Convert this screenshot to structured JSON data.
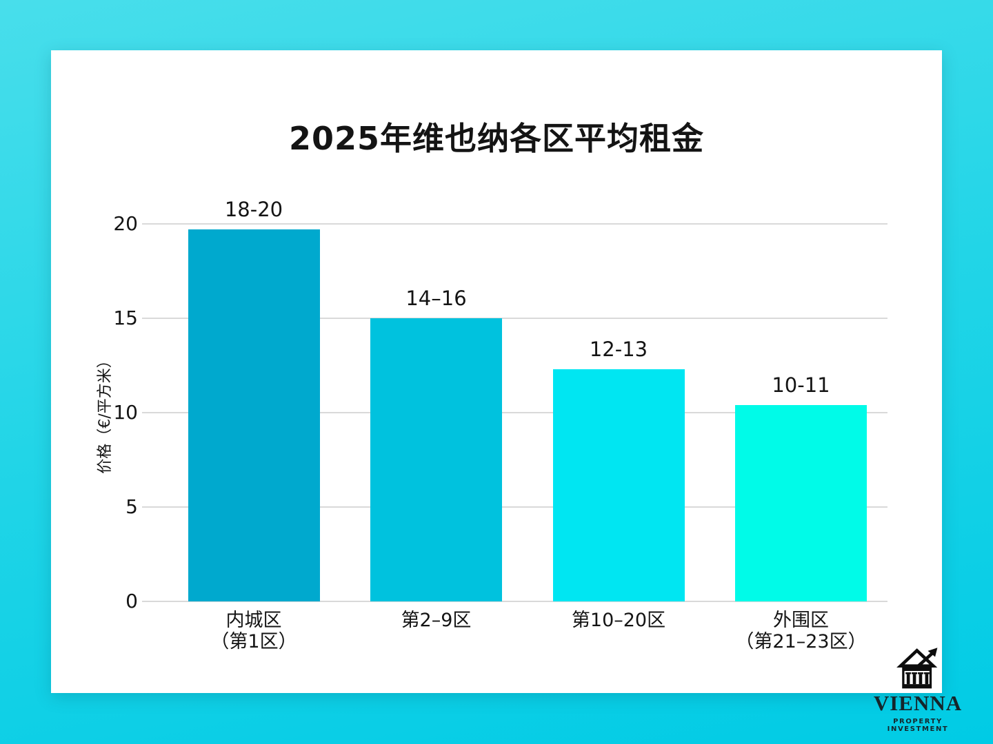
{
  "theme": {
    "background_top": "#48DEEB",
    "background_bottom": "#00CBE5",
    "card": "#FFFFFF",
    "grid": "#D9D9D9",
    "text": "#141414",
    "logo_text": "#15262B"
  },
  "chart_data": {
    "type": "bar",
    "title": "2025年维也纳各区平均租金",
    "categories": [
      "内城区\n（第1区）",
      "第2–9区",
      "第10–20区",
      "外围区\n（第21–23区）"
    ],
    "values": [
      19.7,
      15.0,
      12.3,
      10.4
    ],
    "bar_labels": [
      "18-20",
      "14–16",
      "12-13",
      "10-11"
    ],
    "bar_colors": [
      "#00A9CE",
      "#00C2DE",
      "#00E6F2",
      "#00FBE8"
    ],
    "xlabel": "",
    "ylabel": "价格（€/平方米）",
    "yticks": [
      0,
      5,
      10,
      15,
      20
    ],
    "ylim": [
      0,
      20
    ],
    "grid": true,
    "legend": "none"
  },
  "logo": {
    "icon": "bank-building-with-rising-arrow-icon",
    "name": "VIENNA",
    "subtitle": "PROPERTY INVESTMENT"
  }
}
